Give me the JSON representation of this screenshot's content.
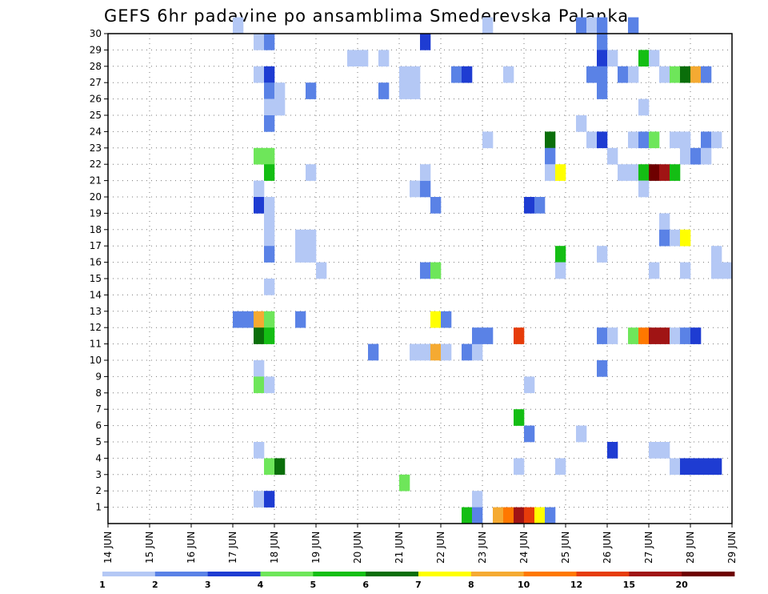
{
  "chart_data": {
    "type": "heatmap",
    "title": "GEFS 6hr padavine po ansamblima Smederevska Palanka",
    "y_tick_labels": [
      "1",
      "2",
      "3",
      "4",
      "5",
      "6",
      "7",
      "8",
      "9",
      "10",
      "11",
      "12",
      "13",
      "14",
      "15",
      "16",
      "17",
      "18",
      "19",
      "20",
      "21",
      "22",
      "23",
      "24",
      "25",
      "26",
      "27",
      "28",
      "29",
      "30"
    ],
    "x_tick_labels": [
      "14 JUN",
      "15 JUN",
      "16 JUN",
      "17 JUN",
      "18 JUN",
      "19 JUN",
      "20 JUN",
      "21 JUN",
      "22 JUN",
      "23 JUN",
      "24 JUN",
      "25 JUN",
      "26 JUN",
      "27 JUN",
      "28 JUN",
      "29 JUN"
    ],
    "x_range": [
      "14 JUN",
      "29 JUN"
    ],
    "y_range": [
      0,
      30
    ],
    "grid": true,
    "color_levels": [
      "1",
      "2",
      "3",
      "4",
      "5",
      "6",
      "7",
      "8",
      "10",
      "12",
      "15",
      "20"
    ],
    "colors": [
      "#b4c8f5",
      "#5a82e6",
      "#1e3cd2",
      "#6ee65a",
      "#14be14",
      "#0a6e0a",
      "#ffff00",
      "#f5aa32",
      "#ff7800",
      "#e63c0a",
      "#a01414",
      "#6e0000"
    ],
    "cells": [
      [
        17.0,
        30,
        0
      ],
      [
        17.5,
        29,
        0
      ],
      [
        17.75,
        29,
        1
      ],
      [
        17.5,
        27,
        0
      ],
      [
        17.75,
        27,
        2
      ],
      [
        17.75,
        26,
        1
      ],
      [
        18.0,
        26,
        0
      ],
      [
        18.0,
        25,
        0
      ],
      [
        17.75,
        25,
        0
      ],
      [
        17.75,
        24,
        1
      ],
      [
        17.5,
        22,
        3
      ],
      [
        17.75,
        22,
        3
      ],
      [
        17.75,
        21,
        4
      ],
      [
        17.5,
        20,
        0
      ],
      [
        17.5,
        19,
        2
      ],
      [
        17.75,
        19,
        0
      ],
      [
        17.75,
        18,
        0
      ],
      [
        17.75,
        17,
        0
      ],
      [
        17.75,
        16,
        1
      ],
      [
        17.75,
        14,
        0
      ],
      [
        17.0,
        12,
        1
      ],
      [
        17.25,
        12,
        1
      ],
      [
        17.5,
        12,
        7
      ],
      [
        17.75,
        12,
        3
      ],
      [
        17.5,
        11,
        5
      ],
      [
        17.75,
        11,
        4
      ],
      [
        17.5,
        9,
        0
      ],
      [
        17.5,
        8,
        3
      ],
      [
        17.75,
        8,
        0
      ],
      [
        17.5,
        4,
        0
      ],
      [
        17.75,
        3,
        3
      ],
      [
        18.0,
        3,
        5
      ],
      [
        17.5,
        1,
        0
      ],
      [
        17.75,
        1,
        2
      ],
      [
        18.75,
        26,
        1
      ],
      [
        18.75,
        21,
        0
      ],
      [
        18.5,
        17,
        0
      ],
      [
        18.75,
        17,
        0
      ],
      [
        18.5,
        16,
        0
      ],
      [
        18.75,
        16,
        0
      ],
      [
        19.0,
        15,
        0
      ],
      [
        18.5,
        12,
        1
      ],
      [
        19.75,
        28,
        0
      ],
      [
        20.0,
        28,
        0
      ],
      [
        20.5,
        28,
        0
      ],
      [
        20.25,
        10,
        1
      ],
      [
        20.5,
        26,
        1
      ],
      [
        21.0,
        27,
        0
      ],
      [
        21.25,
        27,
        0
      ],
      [
        21.0,
        26,
        0
      ],
      [
        21.25,
        26,
        0
      ],
      [
        21.5,
        29,
        2
      ],
      [
        21.25,
        20,
        0
      ],
      [
        21.5,
        20,
        1
      ],
      [
        21.5,
        21,
        0
      ],
      [
        21.75,
        19,
        1
      ],
      [
        21.5,
        15,
        1
      ],
      [
        21.75,
        15,
        3
      ],
      [
        21.75,
        12,
        6
      ],
      [
        22.0,
        12,
        1
      ],
      [
        21.25,
        10,
        0
      ],
      [
        21.5,
        10,
        0
      ],
      [
        21.75,
        10,
        7
      ],
      [
        22.0,
        10,
        0
      ],
      [
        21.0,
        2,
        3
      ],
      [
        22.25,
        27,
        1
      ],
      [
        22.5,
        27,
        2
      ],
      [
        22.5,
        10,
        1
      ],
      [
        22.75,
        10,
        0
      ],
      [
        22.75,
        11,
        1
      ],
      [
        23.0,
        11,
        1
      ],
      [
        22.75,
        1,
        0
      ],
      [
        22.5,
        0,
        4
      ],
      [
        22.75,
        0,
        1
      ],
      [
        23.0,
        30,
        0
      ],
      [
        23.0,
        23,
        0
      ],
      [
        23.5,
        27,
        0
      ],
      [
        23.75,
        11,
        9
      ],
      [
        23.25,
        0,
        7
      ],
      [
        23.5,
        0,
        8
      ],
      [
        23.75,
        6,
        4
      ],
      [
        24.0,
        5,
        1
      ],
      [
        24.0,
        8,
        0
      ],
      [
        24.0,
        19,
        2
      ],
      [
        24.25,
        19,
        1
      ],
      [
        23.75,
        3,
        0
      ],
      [
        23.75,
        0,
        10
      ],
      [
        24.0,
        0,
        9
      ],
      [
        24.25,
        0,
        6
      ],
      [
        24.5,
        0,
        1
      ],
      [
        24.5,
        23,
        5
      ],
      [
        24.5,
        22,
        1
      ],
      [
        24.5,
        21,
        0
      ],
      [
        24.75,
        21,
        6
      ],
      [
        24.75,
        16,
        4
      ],
      [
        24.75,
        15,
        0
      ],
      [
        24.75,
        3,
        0
      ],
      [
        25.25,
        30,
        1
      ],
      [
        25.5,
        30,
        0
      ],
      [
        25.75,
        30,
        1
      ],
      [
        25.75,
        29,
        1
      ],
      [
        25.75,
        28,
        2
      ],
      [
        26.0,
        28,
        0
      ],
      [
        25.5,
        27,
        1
      ],
      [
        25.75,
        27,
        1
      ],
      [
        25.75,
        26,
        1
      ],
      [
        25.25,
        24,
        0
      ],
      [
        25.5,
        23,
        0
      ],
      [
        25.75,
        23,
        2
      ],
      [
        26.0,
        22,
        0
      ],
      [
        25.75,
        16,
        0
      ],
      [
        25.75,
        11,
        1
      ],
      [
        26.0,
        11,
        0
      ],
      [
        25.75,
        9,
        1
      ],
      [
        25.25,
        5,
        0
      ],
      [
        26.0,
        4,
        2
      ],
      [
        26.5,
        30,
        1
      ],
      [
        26.75,
        28,
        4
      ],
      [
        27.0,
        28,
        0
      ],
      [
        26.25,
        27,
        1
      ],
      [
        26.5,
        27,
        0
      ],
      [
        27.25,
        27,
        0
      ],
      [
        27.5,
        27,
        3
      ],
      [
        27.75,
        27,
        5
      ],
      [
        28.0,
        27,
        7
      ],
      [
        28.25,
        27,
        1
      ],
      [
        26.75,
        25,
        0
      ],
      [
        26.5,
        23,
        0
      ],
      [
        26.75,
        23,
        1
      ],
      [
        27.0,
        23,
        3
      ],
      [
        27.5,
        23,
        0
      ],
      [
        27.75,
        23,
        0
      ],
      [
        28.25,
        23,
        1
      ],
      [
        28.5,
        23,
        0
      ],
      [
        27.75,
        22,
        0
      ],
      [
        28.0,
        22,
        1
      ],
      [
        28.25,
        22,
        0
      ],
      [
        26.25,
        21,
        0
      ],
      [
        26.5,
        21,
        0
      ],
      [
        26.75,
        21,
        4
      ],
      [
        27.0,
        21,
        11
      ],
      [
        27.25,
        21,
        10
      ],
      [
        27.5,
        21,
        4
      ],
      [
        26.75,
        20,
        0
      ],
      [
        27.25,
        18,
        0
      ],
      [
        27.25,
        17,
        1
      ],
      [
        27.5,
        17,
        0
      ],
      [
        27.75,
        17,
        6
      ],
      [
        27.0,
        15,
        0
      ],
      [
        27.75,
        15,
        0
      ],
      [
        28.5,
        16,
        0
      ],
      [
        28.5,
        15,
        0
      ],
      [
        28.75,
        15,
        0
      ],
      [
        26.5,
        11,
        3
      ],
      [
        26.75,
        11,
        8
      ],
      [
        27.0,
        11,
        10
      ],
      [
        27.25,
        11,
        10
      ],
      [
        27.5,
        11,
        0
      ],
      [
        27.75,
        11,
        1
      ],
      [
        28.0,
        11,
        2
      ],
      [
        27.0,
        4,
        0
      ],
      [
        27.25,
        4,
        0
      ],
      [
        27.5,
        3,
        0
      ],
      [
        27.75,
        3,
        2
      ],
      [
        28.0,
        3,
        2
      ],
      [
        28.25,
        3,
        2
      ],
      [
        28.5,
        3,
        2
      ]
    ]
  }
}
